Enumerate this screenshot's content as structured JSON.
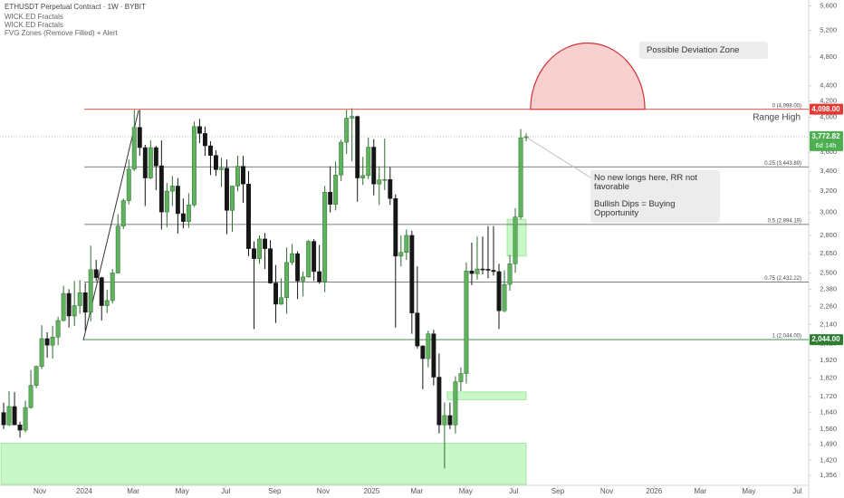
{
  "chart_data": {
    "type": "candlestick",
    "title": "ETHUSDT Perpetual Contract · 1W · BYBIT",
    "indicators": [
      "WICK.ED Fractals",
      "WICK.ED Fractals",
      "FVG Zones (Remove Filled) + Alert"
    ],
    "scale": "log",
    "grid": false,
    "xlim": [
      -0.67,
      147.9
    ],
    "xticks": [
      {
        "value": 6.66,
        "label": "Nov"
      },
      {
        "value": 14.8,
        "label": "2024"
      },
      {
        "value": 23.8,
        "label": "Mar"
      },
      {
        "value": 32.8,
        "label": "May"
      },
      {
        "value": 40.8,
        "label": "Jul"
      },
      {
        "value": 49.8,
        "label": "Sep"
      },
      {
        "value": 58.7,
        "label": "Nov"
      },
      {
        "value": 67.6,
        "label": "2025"
      },
      {
        "value": 75.9,
        "label": "Mar"
      },
      {
        "value": 84.9,
        "label": "May"
      },
      {
        "value": 93.7,
        "label": "Jul"
      },
      {
        "value": 101.8,
        "label": "Sep"
      },
      {
        "value": 110.8,
        "label": "Nov"
      },
      {
        "value": 119.5,
        "label": "2026"
      },
      {
        "value": 128,
        "label": "Mar"
      },
      {
        "value": 136.9,
        "label": "May"
      },
      {
        "value": 145.8,
        "label": "Jul"
      }
    ],
    "ylim": [
      1320,
      5700
    ],
    "yticks": [
      {
        "value": 5600,
        "label": "5,600"
      },
      {
        "value": 5200,
        "label": "5,200"
      },
      {
        "value": 4800,
        "label": "4,800"
      },
      {
        "value": 4400,
        "label": "4,400"
      },
      {
        "value": 4200,
        "label": "4,200"
      },
      {
        "value": 4000,
        "label": "4,000"
      },
      {
        "value": 3800,
        "label": "3,800"
      },
      {
        "value": 3600,
        "label": "3,600"
      },
      {
        "value": 3400,
        "label": "3,400"
      },
      {
        "value": 3200,
        "label": "3,200"
      },
      {
        "value": 3000,
        "label": "3,000"
      },
      {
        "value": 2800,
        "label": "2,800"
      },
      {
        "value": 2650,
        "label": "2,650"
      },
      {
        "value": 2500,
        "label": "2,500"
      },
      {
        "value": 2380,
        "label": "2,380"
      },
      {
        "value": 2260,
        "label": "2,260"
      },
      {
        "value": 2140,
        "label": "2,140"
      },
      {
        "value": 2020,
        "label": "2,020"
      },
      {
        "value": 1920,
        "label": "1,920"
      },
      {
        "value": 1820,
        "label": "1,820"
      },
      {
        "value": 1720,
        "label": "1,720"
      },
      {
        "value": 1640,
        "label": "1,640"
      },
      {
        "value": 1560,
        "label": "1,560"
      },
      {
        "value": 1490,
        "label": "1,490"
      },
      {
        "value": 1420,
        "label": "1,420"
      },
      {
        "value": 1356,
        "label": "1,356"
      }
    ],
    "up_color": "#5fb35f",
    "up_border": "#2e6b2e",
    "down_color": "#161616",
    "open": [
      1640,
      1580,
      1670,
      1580,
      1555,
      1665,
      1780,
      1885,
      2050,
      2010,
      2060,
      2165,
      2350,
      2195,
      2265,
      2355,
      2220,
      2525,
      2465,
      2265,
      2300,
      2500,
      2880,
      3110,
      3420,
      3880,
      3650,
      3330,
      3650,
      3455,
      3005,
      3200,
      3250,
      2990,
      2920,
      3070,
      3890,
      3810,
      3670,
      3565,
      3415,
      3430,
      3020,
      3250,
      3450,
      3270,
      2690,
      2610,
      2770,
      2690,
      2425,
      2275,
      2320,
      2580,
      2650,
      2440,
      2470,
      2750,
      2510,
      2435,
      3190,
      3075,
      3360,
      3710,
      3990,
      4010,
      3330,
      3355,
      3655,
      3270,
      3310,
      3315,
      3130,
      2630,
      2660,
      2800,
      2215,
      2005,
      1930,
      2080,
      1825,
      1580,
      1625,
      1580,
      1800,
      1845,
      2515,
      2495,
      2530,
      2528,
      2520,
      2510,
      2230,
      2415,
      2570,
      2960,
      3760
    ],
    "high": [
      1690,
      1750,
      1745,
      1595,
      1700,
      1865,
      1890,
      2135,
      2090,
      2130,
      2190,
      2405,
      2380,
      2440,
      2445,
      2425,
      2715,
      2600,
      2470,
      2375,
      2530,
      2985,
      3130,
      3520,
      4090,
      4090,
      3680,
      3730,
      3670,
      3730,
      3280,
      3350,
      3330,
      3130,
      3180,
      3950,
      3980,
      3890,
      3720,
      3620,
      3540,
      3520,
      3255,
      3560,
      3560,
      3400,
      2750,
      2800,
      2820,
      2760,
      2560,
      2460,
      2700,
      2730,
      2670,
      2510,
      2760,
      2770,
      2720,
      3250,
      3450,
      3500,
      3740,
      4090,
      4110,
      4020,
      3550,
      3760,
      3745,
      3450,
      3750,
      3440,
      3170,
      2800,
      2850,
      2840,
      2550,
      2010,
      2100,
      2105,
      1960,
      1690,
      1690,
      1830,
      1880,
      2580,
      2740,
      2790,
      2790,
      2880,
      2880,
      2570,
      2520,
      2640,
      3040,
      3860,
      3810
    ],
    "low": [
      1560,
      1575,
      1580,
      1520,
      1545,
      1660,
      1765,
      1870,
      1935,
      1930,
      2010,
      2160,
      2120,
      2130,
      2210,
      2100,
      2160,
      2440,
      2165,
      2215,
      2280,
      2495,
      2855,
      3075,
      3400,
      3560,
      3060,
      3320,
      3210,
      2850,
      2870,
      3060,
      2815,
      2860,
      2865,
      3050,
      3700,
      3560,
      3360,
      3350,
      3240,
      2810,
      2830,
      3200,
      3090,
      2630,
      2110,
      2570,
      2530,
      2420,
      2150,
      2270,
      2210,
      2560,
      2310,
      2330,
      2465,
      2440,
      2420,
      2360,
      3000,
      3020,
      3300,
      3580,
      3500,
      3100,
      3260,
      3320,
      3160,
      3070,
      3210,
      3070,
      2120,
      2550,
      2600,
      2080,
      1990,
      1760,
      1880,
      1780,
      1540,
      1385,
      1560,
      1540,
      1750,
      1790,
      2410,
      2450,
      2490,
      2460,
      2480,
      2110,
      2220,
      2370,
      2500,
      2940,
      3720
    ],
    "close": [
      1580,
      1670,
      1580,
      1555,
      1665,
      1780,
      1885,
      2050,
      2010,
      2060,
      2165,
      2350,
      2195,
      2265,
      2355,
      2220,
      2525,
      2465,
      2265,
      2300,
      2500,
      2880,
      3110,
      3420,
      3880,
      3650,
      3330,
      3650,
      3455,
      3005,
      3200,
      3250,
      2990,
      2920,
      3070,
      3890,
      3810,
      3670,
      3565,
      3415,
      3430,
      3020,
      3250,
      3450,
      3270,
      2690,
      2610,
      2770,
      2690,
      2425,
      2275,
      2320,
      2580,
      2650,
      2440,
      2470,
      2750,
      2510,
      2435,
      3190,
      3075,
      3360,
      3710,
      3990,
      4010,
      3330,
      3355,
      3655,
      3270,
      3310,
      3315,
      3130,
      2630,
      2660,
      2800,
      2215,
      2005,
      1930,
      2080,
      1825,
      1580,
      1625,
      1580,
      1800,
      1845,
      2515,
      2495,
      2530,
      2528,
      2520,
      2510,
      2230,
      2415,
      2570,
      2960,
      3760,
      3772.82
    ],
    "levels": [
      {
        "value": 4098,
        "label": "0 (4,098.00)",
        "badge": "4,098.00",
        "color": "#e53935"
      },
      {
        "value": 3443.89,
        "label": "0.25 (3,443.89)",
        "color": "#555555"
      },
      {
        "value": 2894.19,
        "label": "0.5 (2,894.19)",
        "color": "#555555"
      },
      {
        "value": 2432.22,
        "label": "0.75 (2,432.22)",
        "color": "#555555"
      },
      {
        "value": 2044,
        "label": "1 (2,044.00)",
        "badge": "2,044.00",
        "color": "#2e7d32"
      }
    ],
    "range_label": "Range High",
    "last_price": {
      "value": 3772.82,
      "label": "3,772.82",
      "countdown": "6d 14h",
      "color": "#4caf50"
    },
    "fvg_zones": [
      {
        "start": 0,
        "low": 1320,
        "high": 1495,
        "color": "#c8f7c8"
      },
      {
        "start": 82,
        "low": 1705,
        "high": 1745,
        "color": "#c8f7c8"
      },
      {
        "start": 93,
        "low": 2630,
        "high": 2940,
        "color": "#c8f7c8"
      }
    ],
    "deviation_zone": {
      "label": "Possible Deviation Zone",
      "start": 96.8,
      "end": 117.8,
      "base": 4098,
      "peak": 5006,
      "color": "#f8d0d0",
      "edge": "#d32f2f"
    },
    "notes": [
      "No new longs here, RR not favorable",
      "Bullish Dips = Buying Opportunity"
    ]
  }
}
